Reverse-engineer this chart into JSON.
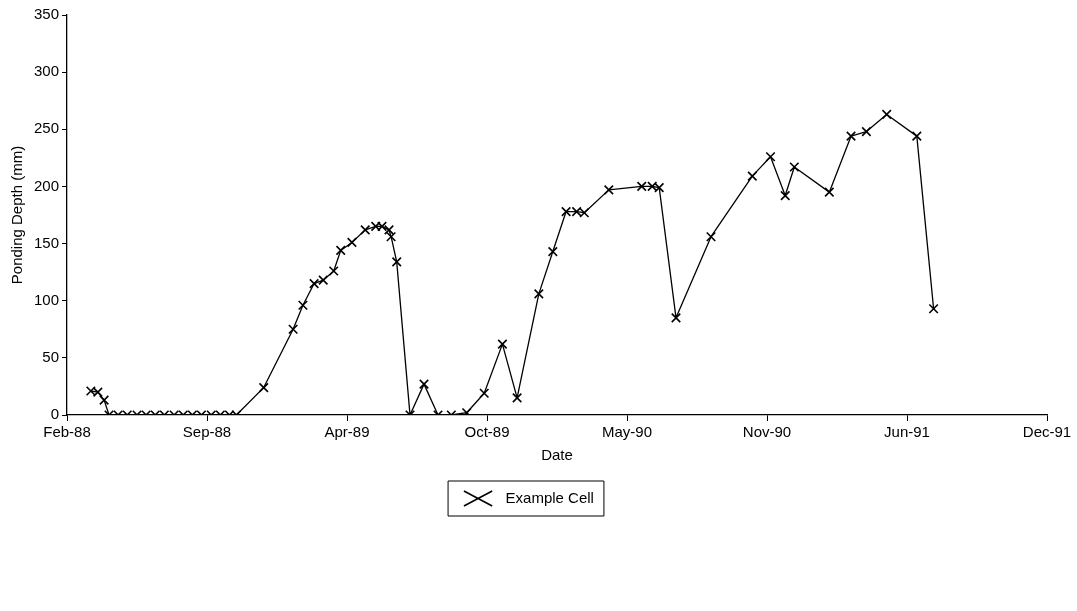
{
  "chart_data": {
    "type": "line",
    "xlabel": "Date",
    "ylabel": "Ponding Depth (mm)",
    "xlim": [
      "1988-02-28",
      "1991-12-29"
    ],
    "xticks": [
      {
        "value": "1988-02-28",
        "label": "Feb-88"
      },
      {
        "value": "1988-09-15",
        "label": "Sep-88"
      },
      {
        "value": "1989-04-03",
        "label": "Apr-89"
      },
      {
        "value": "1989-10-20",
        "label": "Oct-89"
      },
      {
        "value": "1990-05-08",
        "label": "May-90"
      },
      {
        "value": "1990-11-24",
        "label": "Nov-90"
      },
      {
        "value": "1991-06-12",
        "label": "Jun-91"
      },
      {
        "value": "1991-12-29",
        "label": "Dec-91"
      }
    ],
    "ylim": [
      0,
      350
    ],
    "yticks": [
      0,
      50,
      100,
      150,
      200,
      250,
      300,
      350
    ],
    "grid": false,
    "legend": "bottom",
    "marker": "cross",
    "line_style": "solid",
    "series": [
      {
        "name": "Example Cell",
        "color": "#000000",
        "x": [
          "1988-04-02",
          "1988-04-12",
          "1988-04-21",
          "1988-04-28",
          "1988-05-11",
          "1988-05-24",
          "1988-06-07",
          "1988-06-20",
          "1988-07-03",
          "1988-07-16",
          "1988-07-30",
          "1988-08-12",
          "1988-08-25",
          "1988-09-07",
          "1988-09-21",
          "1988-10-04",
          "1988-10-17",
          "1988-10-27",
          "1988-12-05",
          "1989-01-16",
          "1989-01-30",
          "1989-02-15",
          "1989-02-28",
          "1989-03-15",
          "1989-03-25",
          "1989-04-10",
          "1989-04-29",
          "1989-05-14",
          "1989-05-23",
          "1989-06-02",
          "1989-06-05",
          "1989-06-13",
          "1989-07-02",
          "1989-07-22",
          "1989-08-11",
          "1989-08-30",
          "1989-09-21",
          "1989-10-16",
          "1989-11-11",
          "1989-12-02",
          "1990-01-02",
          "1990-01-22",
          "1990-02-10",
          "1990-02-25",
          "1990-03-08",
          "1990-04-12",
          "1990-05-29",
          "1990-06-13",
          "1990-06-23",
          "1990-07-17",
          "1990-09-05",
          "1990-11-03",
          "1990-11-29",
          "1990-12-20",
          "1991-01-02",
          "1991-02-21",
          "1991-03-24",
          "1991-04-15",
          "1991-05-14",
          "1991-06-26",
          "1991-07-20"
        ],
        "values": [
          21,
          20,
          13,
          0,
          0,
          0,
          0,
          0,
          0,
          0,
          0,
          0,
          0,
          0,
          0,
          0,
          0,
          0,
          24,
          75,
          96,
          115,
          118,
          126,
          144,
          151,
          162,
          165,
          165,
          162,
          156,
          134,
          0,
          27,
          0,
          0,
          2,
          19,
          62,
          15,
          106,
          143,
          178,
          178,
          177,
          197,
          200,
          200,
          199,
          85,
          156,
          209,
          226,
          192,
          217,
          195,
          244,
          248,
          263,
          244,
          93
        ]
      }
    ]
  }
}
